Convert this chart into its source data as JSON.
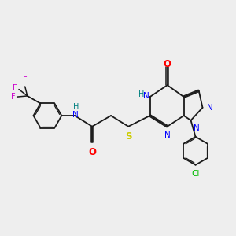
{
  "bg_color": "#eeeeee",
  "fig_size": [
    3.0,
    3.0
  ],
  "dpi": 100,
  "line_color": "#1a1a1a",
  "line_width": 1.3,
  "colors": {
    "N": "#0000ff",
    "O": "#ff0000",
    "S": "#cccc00",
    "Cl": "#00bb00",
    "F": "#cc00cc",
    "NH_teal": "#008080",
    "H_teal": "#008080"
  }
}
